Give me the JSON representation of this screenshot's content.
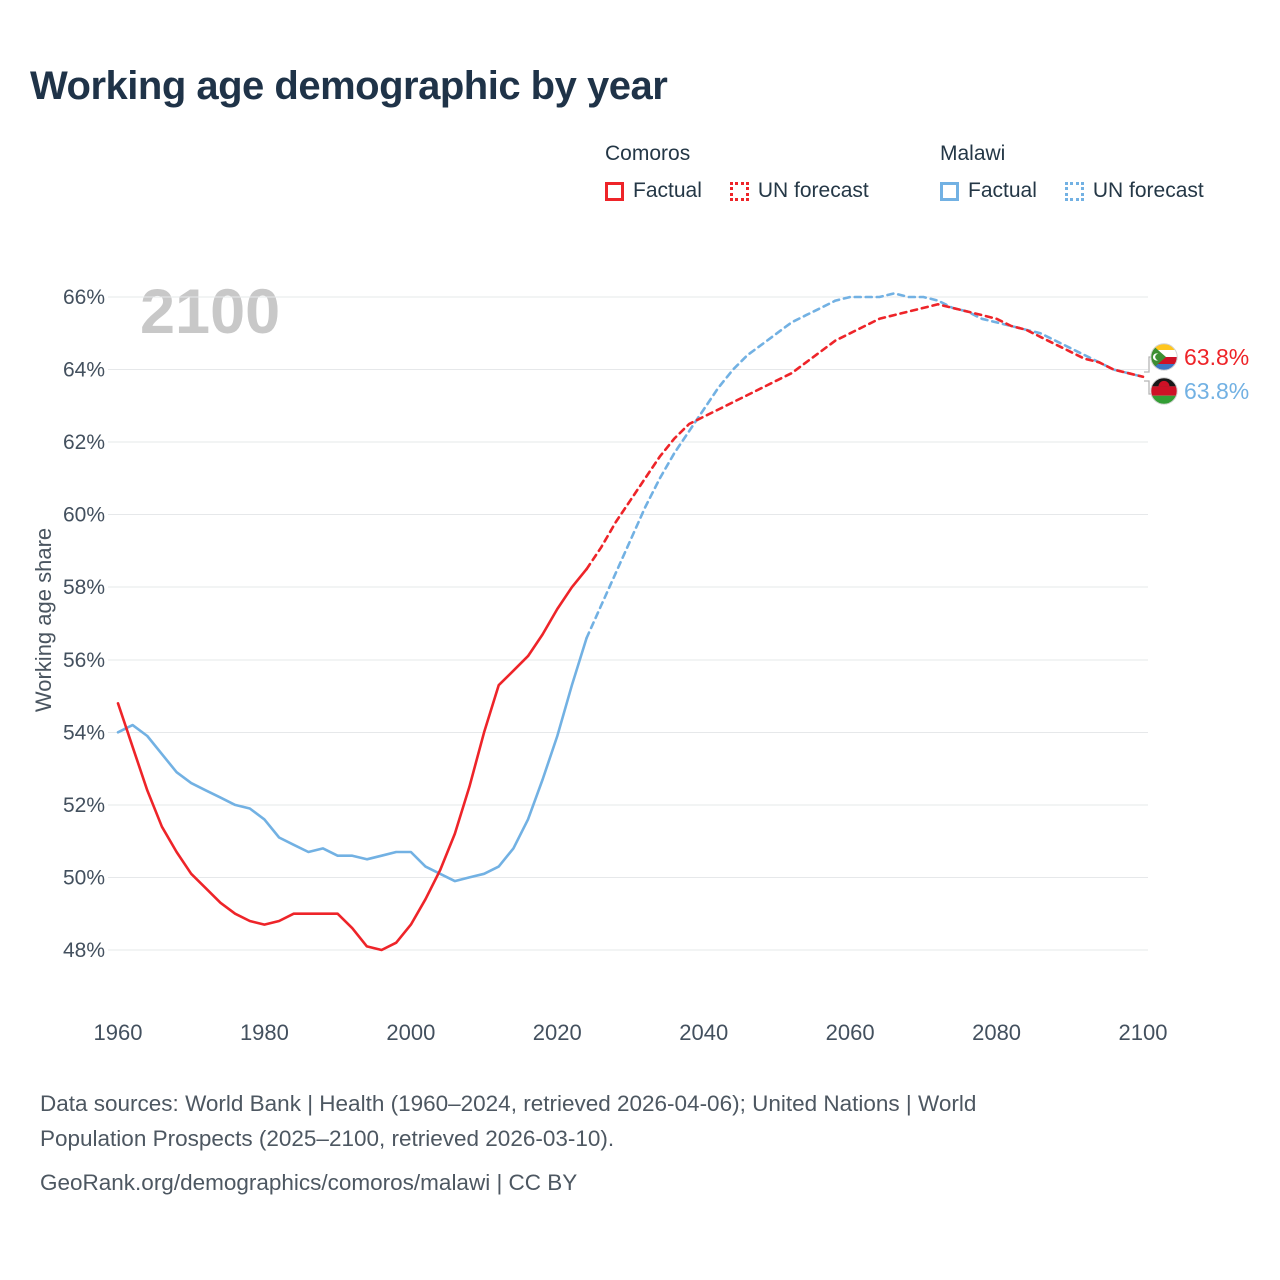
{
  "title": "Working age demographic by year",
  "watermark": "2100",
  "ylabel": "Working age share",
  "legend": {
    "groups": [
      {
        "country": "Comoros",
        "color": "#ee2429",
        "items": [
          {
            "label": "Factual",
            "style": "solid"
          },
          {
            "label": "UN forecast",
            "style": "dotted"
          }
        ]
      },
      {
        "country": "Malawi",
        "color": "#72b1e3",
        "items": [
          {
            "label": "Factual",
            "style": "solid"
          },
          {
            "label": "UN forecast",
            "style": "dotted"
          }
        ]
      }
    ]
  },
  "end_labels": [
    {
      "country": "Comoros",
      "value": "63.8%",
      "color": "#ee2429"
    },
    {
      "country": "Malawi",
      "value": "63.8%",
      "color": "#72b1e3"
    }
  ],
  "footer": {
    "line1": "Data sources: World Bank | Health (1960–2024, retrieved 2026-04-06); United Nations | World",
    "line2": "Population Prospects (2025–2100, retrieved 2026-03-10).",
    "line3": "GeoRank.org/demographics/comoros/malawi | CC BY"
  },
  "chart_data": {
    "type": "line",
    "title": "Working age demographic by year",
    "xlabel": "",
    "ylabel": "Working age share",
    "x_range": [
      1960,
      2100
    ],
    "y_range": [
      48,
      66
    ],
    "grid": "horizontal",
    "legend_position": "top-right",
    "y_ticks": [
      48,
      50,
      52,
      54,
      56,
      58,
      60,
      62,
      64,
      66
    ],
    "y_tick_labels": [
      "48%",
      "50%",
      "52%",
      "54%",
      "56%",
      "58%",
      "60%",
      "62%",
      "64%",
      "66%"
    ],
    "x_ticks": [
      1960,
      1980,
      2000,
      2020,
      2040,
      2060,
      2080,
      2100
    ],
    "x_tick_labels": [
      "1960",
      "1980",
      "2000",
      "2020",
      "2040",
      "2060",
      "2080",
      "2100"
    ],
    "series": [
      {
        "name": "Malawi Factual",
        "color": "#72b1e3",
        "dash": "solid",
        "x": [
          1960,
          1962,
          1964,
          1966,
          1968,
          1970,
          1972,
          1974,
          1976,
          1978,
          1980,
          1982,
          1984,
          1986,
          1988,
          1990,
          1992,
          1994,
          1996,
          1998,
          2000,
          2002,
          2004,
          2006,
          2008,
          2010,
          2012,
          2014,
          2016,
          2018,
          2020,
          2022,
          2024
        ],
        "y": [
          54.0,
          54.2,
          53.9,
          53.4,
          52.9,
          52.6,
          52.4,
          52.2,
          52.0,
          51.9,
          51.6,
          51.1,
          50.9,
          50.7,
          50.8,
          50.6,
          50.6,
          50.5,
          50.6,
          50.7,
          50.7,
          50.3,
          50.1,
          49.9,
          50.0,
          50.1,
          50.3,
          50.8,
          51.6,
          52.7,
          53.9,
          55.3,
          56.6
        ]
      },
      {
        "name": "Malawi UN forecast",
        "color": "#72b1e3",
        "dash": "dashed",
        "x": [
          2024,
          2026,
          2028,
          2030,
          2032,
          2034,
          2036,
          2038,
          2040,
          2042,
          2044,
          2046,
          2048,
          2050,
          2052,
          2054,
          2056,
          2058,
          2060,
          2062,
          2064,
          2066,
          2068,
          2070,
          2072,
          2074,
          2076,
          2078,
          2080,
          2082,
          2084,
          2086,
          2088,
          2090,
          2092,
          2094,
          2096,
          2098,
          2100
        ],
        "y": [
          56.6,
          57.5,
          58.4,
          59.3,
          60.2,
          61.0,
          61.7,
          62.3,
          62.9,
          63.5,
          64.0,
          64.4,
          64.7,
          65.0,
          65.3,
          65.5,
          65.7,
          65.9,
          66.0,
          66.0,
          66.0,
          66.1,
          66.0,
          66.0,
          65.9,
          65.7,
          65.6,
          65.4,
          65.3,
          65.2,
          65.1,
          65.0,
          64.8,
          64.6,
          64.4,
          64.2,
          64.0,
          63.9,
          63.8
        ]
      },
      {
        "name": "Comoros Factual",
        "color": "#ee2429",
        "dash": "solid",
        "x": [
          1960,
          1962,
          1964,
          1966,
          1968,
          1970,
          1972,
          1974,
          1976,
          1978,
          1980,
          1982,
          1984,
          1986,
          1988,
          1990,
          1992,
          1994,
          1996,
          1998,
          2000,
          2002,
          2004,
          2006,
          2008,
          2010,
          2012,
          2014,
          2016,
          2018,
          2020,
          2022,
          2024
        ],
        "y": [
          54.8,
          53.6,
          52.4,
          51.4,
          50.7,
          50.1,
          49.7,
          49.3,
          49.0,
          48.8,
          48.7,
          48.8,
          49.0,
          49.0,
          49.0,
          49.0,
          48.6,
          48.1,
          48.0,
          48.2,
          48.7,
          49.4,
          50.2,
          51.2,
          52.5,
          54.0,
          55.3,
          55.7,
          56.1,
          56.7,
          57.4,
          58.0,
          58.5
        ]
      },
      {
        "name": "Comoros UN forecast",
        "color": "#ee2429",
        "dash": "dashed",
        "x": [
          2024,
          2026,
          2028,
          2030,
          2032,
          2034,
          2036,
          2038,
          2040,
          2042,
          2044,
          2046,
          2048,
          2050,
          2052,
          2054,
          2056,
          2058,
          2060,
          2062,
          2064,
          2066,
          2068,
          2070,
          2072,
          2074,
          2076,
          2078,
          2080,
          2082,
          2084,
          2086,
          2088,
          2090,
          2092,
          2094,
          2096,
          2098,
          2100
        ],
        "y": [
          58.5,
          59.1,
          59.8,
          60.4,
          61.0,
          61.6,
          62.1,
          62.5,
          62.7,
          62.9,
          63.1,
          63.3,
          63.5,
          63.7,
          63.9,
          64.2,
          64.5,
          64.8,
          65.0,
          65.2,
          65.4,
          65.5,
          65.6,
          65.7,
          65.8,
          65.7,
          65.6,
          65.5,
          65.4,
          65.2,
          65.1,
          64.9,
          64.7,
          64.5,
          64.3,
          64.2,
          64.0,
          63.9,
          63.8
        ]
      }
    ]
  }
}
